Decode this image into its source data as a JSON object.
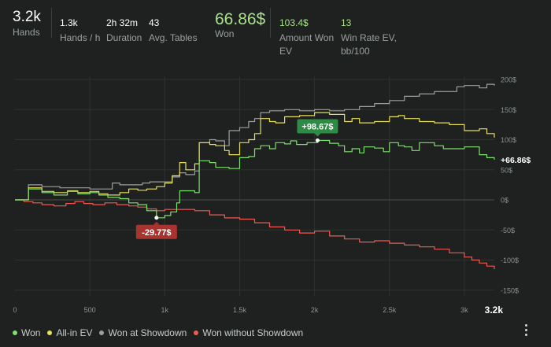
{
  "stats": [
    {
      "value": "3.2k",
      "label": "Hands",
      "style": "big"
    },
    {
      "value": "1.3k",
      "label": "Hands / h",
      "style": "normal"
    },
    {
      "value": "2h 32m",
      "label": "Duration",
      "style": "normal"
    },
    {
      "value": "43",
      "label": "Avg. Tables",
      "style": "normal"
    },
    {
      "value": "66.86$",
      "label": "Won",
      "style": "won"
    },
    {
      "value": "103.4$",
      "label": "Amount Won EV",
      "style": "green"
    },
    {
      "value": "13",
      "label": "Win Rate EV, bb/100",
      "style": "green"
    }
  ],
  "colors": {
    "won": "#7ee06d",
    "allin_ev": "#e8e05a",
    "showdown": "#9e9e9e",
    "no_showdown": "#ef5a52",
    "grid": "#2f332f",
    "zero": "#4a4e4b"
  },
  "chart_data": {
    "type": "line",
    "xlabel": "",
    "ylabel": "",
    "xlim": [
      0,
      3200
    ],
    "ylim": [
      -160,
      205
    ],
    "x_ticks": [
      {
        "value": 0,
        "label": "0"
      },
      {
        "value": 500,
        "label": "500"
      },
      {
        "value": 1000,
        "label": "1k"
      },
      {
        "value": 1500,
        "label": "1.5k"
      },
      {
        "value": 2000,
        "label": "2k"
      },
      {
        "value": 2500,
        "label": "2.5k"
      },
      {
        "value": 3000,
        "label": "3k"
      }
    ],
    "x_end_label": "3.2k",
    "y_ticks": [
      {
        "value": 200,
        "label": "200$"
      },
      {
        "value": 150,
        "label": "150$"
      },
      {
        "value": 100,
        "label": "100$"
      },
      {
        "value": 50,
        "label": "50$"
      },
      {
        "value": 0,
        "label": "0$"
      },
      {
        "value": -50,
        "label": "-50$"
      },
      {
        "value": -100,
        "label": "-100$"
      },
      {
        "value": -150,
        "label": "-150$"
      }
    ],
    "annotations": [
      {
        "x": 2020,
        "y": 98.67,
        "label": "+98.67$",
        "series": "Won"
      },
      {
        "x": 945,
        "y": -29.77,
        "label": "-29.77$",
        "series": "Won"
      }
    ],
    "end_label": {
      "x": 3200,
      "y": 66.86,
      "label": "+66.86$"
    },
    "series": [
      {
        "name": "Won",
        "color_key": "won",
        "x": [
          0,
          50,
          90,
          180,
          260,
          350,
          420,
          500,
          560,
          620,
          700,
          760,
          820,
          880,
          945,
          1000,
          1040,
          1080,
          1100,
          1200,
          1230,
          1300,
          1340,
          1430,
          1500,
          1560,
          1600,
          1640,
          1700,
          1740,
          1800,
          1840,
          1880,
          1950,
          2020,
          2100,
          2160,
          2200,
          2250,
          2300,
          2330,
          2400,
          2460,
          2500,
          2560,
          2600,
          2650,
          2700,
          2800,
          2860,
          2950,
          3000,
          3100,
          3150,
          3200
        ],
        "y": [
          0,
          0,
          18,
          12,
          8,
          14,
          10,
          12,
          8,
          4,
          2,
          -5,
          -8,
          -18,
          -29.77,
          -26,
          -20,
          -5,
          15,
          12,
          65,
          62,
          54,
          52,
          70,
          72,
          85,
          90,
          85,
          95,
          93,
          98,
          92,
          95,
          98.67,
          94,
          90,
          80,
          85,
          78,
          88,
          86,
          80,
          95,
          90,
          88,
          82,
          95,
          90,
          85,
          85,
          88,
          75,
          70,
          66.86
        ]
      },
      {
        "name": "All-in EV",
        "color_key": "allin_ev",
        "x": [
          0,
          50,
          90,
          180,
          260,
          350,
          420,
          500,
          560,
          620,
          700,
          760,
          820,
          880,
          945,
          1000,
          1050,
          1100,
          1140,
          1200,
          1230,
          1300,
          1340,
          1400,
          1430,
          1500,
          1560,
          1600,
          1640,
          1700,
          1740,
          1800,
          1900,
          2000,
          2100,
          2200,
          2250,
          2300,
          2400,
          2500,
          2560,
          2600,
          2700,
          2800,
          2900,
          3000,
          3100,
          3150,
          3200
        ],
        "y": [
          0,
          0,
          20,
          14,
          12,
          15,
          12,
          14,
          10,
          8,
          12,
          18,
          16,
          18,
          22,
          28,
          40,
          62,
          50,
          60,
          95,
          92,
          90,
          82,
          75,
          95,
          100,
          110,
          135,
          130,
          128,
          138,
          140,
          145,
          142,
          130,
          135,
          128,
          130,
          138,
          140,
          135,
          130,
          128,
          125,
          115,
          118,
          110,
          103.4
        ]
      },
      {
        "name": "Won at Showdown",
        "color_key": "showdown",
        "x": [
          0,
          50,
          90,
          180,
          300,
          400,
          500,
          600,
          650,
          700,
          800,
          850,
          900,
          1000,
          1050,
          1100,
          1140,
          1200,
          1230,
          1300,
          1340,
          1400,
          1430,
          1500,
          1560,
          1600,
          1640,
          1700,
          1800,
          1900,
          2000,
          2100,
          2200,
          2300,
          2400,
          2500,
          2600,
          2700,
          2800,
          2900,
          2950,
          3000,
          3100,
          3150,
          3200
        ],
        "y": [
          0,
          0,
          25,
          22,
          20,
          20,
          18,
          18,
          28,
          25,
          25,
          28,
          30,
          30,
          38,
          45,
          42,
          48,
          95,
          100,
          98,
          90,
          115,
          120,
          130,
          135,
          145,
          148,
          150,
          148,
          150,
          148,
          150,
          155,
          160,
          165,
          172,
          176,
          180,
          180,
          188,
          190,
          186,
          192,
          190
        ]
      },
      {
        "name": "Won without Showdown",
        "color_key": "no_showdown",
        "x": [
          0,
          60,
          120,
          180,
          260,
          340,
          400,
          460,
          520,
          600,
          680,
          760,
          820,
          880,
          945,
          1000,
          1100,
          1200,
          1300,
          1400,
          1500,
          1600,
          1700,
          1800,
          1900,
          2000,
          2100,
          2200,
          2300,
          2400,
          2500,
          2600,
          2700,
          2800,
          2900,
          3000,
          3050,
          3100,
          3150,
          3200
        ],
        "y": [
          0,
          -3,
          -5,
          -8,
          -10,
          -6,
          -3,
          -6,
          -8,
          -5,
          -8,
          -10,
          -12,
          -15,
          -18,
          -16,
          -16,
          -18,
          -25,
          -30,
          -32,
          -38,
          -45,
          -50,
          -55,
          -52,
          -60,
          -65,
          -70,
          -68,
          -72,
          -75,
          -78,
          -82,
          -88,
          -95,
          -100,
          -105,
          -110,
          -115
        ]
      }
    ]
  },
  "legend": [
    {
      "name": "Won",
      "color_key": "won"
    },
    {
      "name": "All-in EV",
      "color_key": "allin_ev"
    },
    {
      "name": "Won at Showdown",
      "color_key": "showdown"
    },
    {
      "name": "Won without Showdown",
      "color_key": "no_showdown"
    }
  ]
}
